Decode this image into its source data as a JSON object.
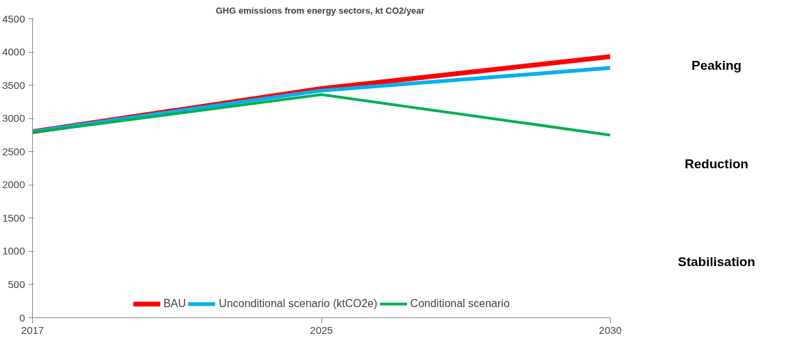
{
  "chart_data": {
    "type": "line",
    "title": "GHG emissions  from energy sectors, kt CO2/year",
    "categories": [
      "2017",
      "2025",
      "2030"
    ],
    "series": [
      {
        "name": "BAU",
        "color": "#ff0000",
        "values": [
          2800,
          3450,
          3930
        ]
      },
      {
        "name": "Unconditional scenario (ktCO2e)",
        "color": "#00b0f0",
        "values": [
          2800,
          3420,
          3760
        ]
      },
      {
        "name": "Conditional scenario",
        "color": "#00b050",
        "values": [
          2790,
          3360,
          2750
        ]
      }
    ],
    "ylim": [
      0,
      4500
    ],
    "yticks": [
      0,
      500,
      1000,
      1500,
      2000,
      2500,
      3000,
      3500,
      4000,
      4500
    ],
    "grid": false,
    "legend": "bottom",
    "marker": "none",
    "line_style": "solid",
    "annotations": [
      "Peaking",
      "Reduction",
      "Stabilisation"
    ]
  }
}
